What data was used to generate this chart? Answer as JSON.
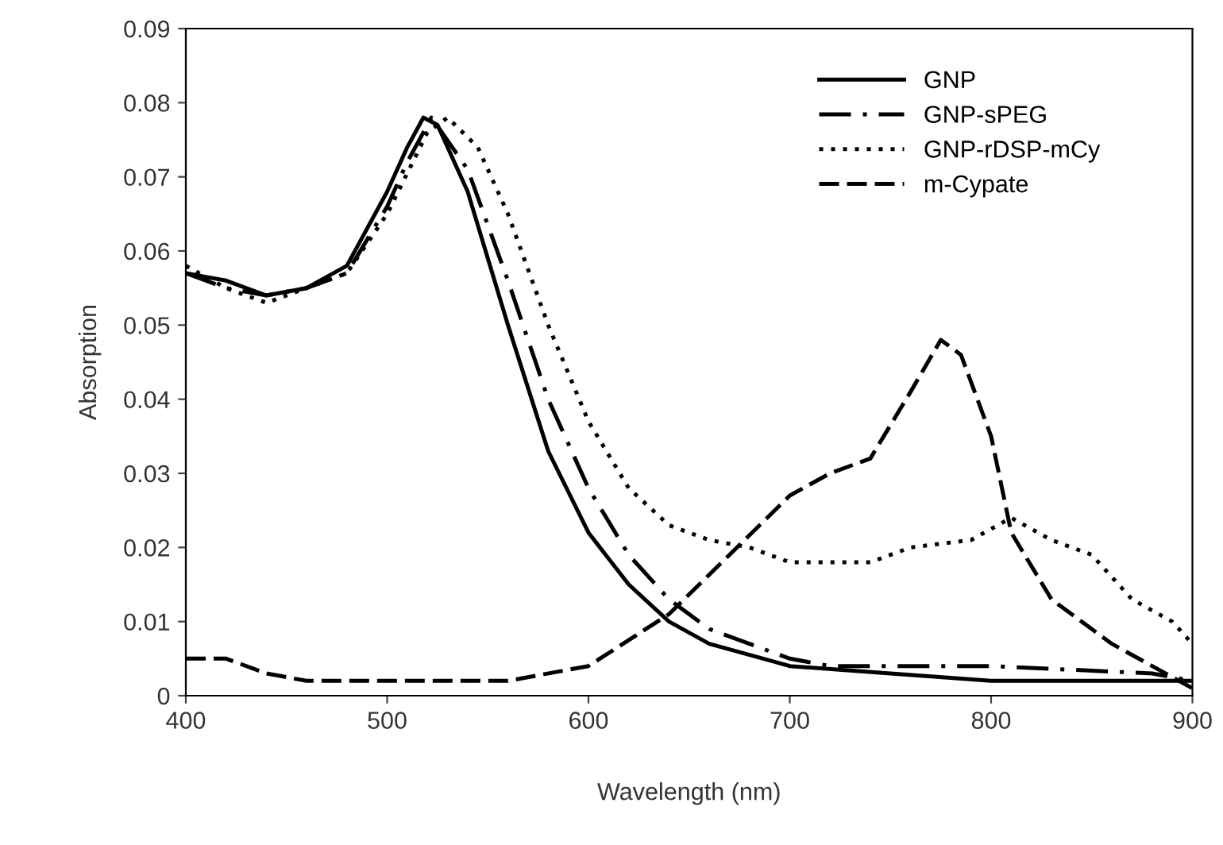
{
  "chart_data": {
    "type": "line",
    "xlabel": "Wavelength (nm)",
    "ylabel": "Absorption",
    "xlim": [
      400,
      900
    ],
    "xticks": [
      400,
      500,
      600,
      700,
      800,
      900
    ],
    "ylim": [
      0,
      0.09
    ],
    "yticks": [
      0,
      0.01,
      0.02,
      0.03,
      0.04,
      0.05,
      0.06,
      0.07,
      0.08,
      0.09
    ],
    "legend": "top right",
    "grid": false,
    "series": [
      {
        "name": "GNP",
        "color": "#000000",
        "line_style": "solid",
        "x": [
          400,
          420,
          440,
          460,
          480,
          500,
          510,
          518,
          525,
          540,
          560,
          580,
          600,
          620,
          640,
          660,
          700,
          750,
          800,
          900
        ],
        "values": [
          0.057,
          0.056,
          0.054,
          0.055,
          0.058,
          0.068,
          0.074,
          0.078,
          0.077,
          0.068,
          0.05,
          0.033,
          0.022,
          0.015,
          0.01,
          0.007,
          0.004,
          0.003,
          0.002,
          0.002
        ]
      },
      {
        "name": "GNP-sPEG",
        "color": "#000000",
        "line_style": "dashdot",
        "x": [
          400,
          420,
          440,
          460,
          480,
          500,
          510,
          522,
          540,
          560,
          580,
          600,
          620,
          640,
          660,
          700,
          720,
          800,
          880,
          900
        ],
        "values": [
          0.057,
          0.055,
          0.054,
          0.055,
          0.057,
          0.066,
          0.072,
          0.078,
          0.071,
          0.056,
          0.04,
          0.028,
          0.019,
          0.013,
          0.009,
          0.005,
          0.004,
          0.004,
          0.003,
          0.002
        ]
      },
      {
        "name": "GNP-rDSP-mCy",
        "color": "#000000",
        "line_style": "dotted",
        "x": [
          400,
          420,
          440,
          460,
          480,
          500,
          520,
          530,
          545,
          560,
          580,
          600,
          620,
          640,
          660,
          680,
          700,
          740,
          760,
          790,
          810,
          830,
          850,
          870,
          890,
          900
        ],
        "values": [
          0.058,
          0.055,
          0.053,
          0.055,
          0.057,
          0.065,
          0.076,
          0.078,
          0.074,
          0.065,
          0.05,
          0.037,
          0.028,
          0.023,
          0.021,
          0.02,
          0.018,
          0.018,
          0.02,
          0.021,
          0.024,
          0.021,
          0.019,
          0.013,
          0.01,
          0.007
        ]
      },
      {
        "name": "m-Cypate",
        "color": "#000000",
        "line_style": "dashed",
        "x": [
          400,
          420,
          440,
          460,
          500,
          560,
          600,
          640,
          670,
          700,
          720,
          740,
          760,
          775,
          785,
          800,
          810,
          830,
          860,
          880,
          900
        ],
        "values": [
          0.005,
          0.005,
          0.003,
          0.002,
          0.002,
          0.002,
          0.004,
          0.011,
          0.019,
          0.027,
          0.03,
          0.032,
          0.041,
          0.048,
          0.046,
          0.035,
          0.022,
          0.013,
          0.007,
          0.004,
          0.001
        ]
      }
    ]
  }
}
